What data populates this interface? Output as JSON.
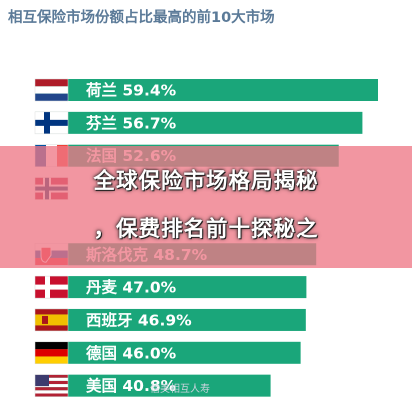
{
  "chart_data": {
    "type": "bar",
    "orientation": "horizontal",
    "title": "相互保险市场份额占比最高的前10大市场",
    "categories": [
      "荷兰",
      "芬兰",
      "法国",
      "",
      "",
      "斯洛伐克",
      "丹麦",
      "西班牙",
      "德国",
      "美国"
    ],
    "values": [
      59.4,
      56.7,
      52.6,
      null,
      null,
      48.7,
      47.0,
      46.9,
      46.0,
      40.8
    ],
    "value_labels": [
      "59.4%",
      "56.7%",
      "52.6%",
      "",
      "",
      "48.7%",
      "47.0%",
      "46.9%",
      "46.0%",
      "40.8%"
    ],
    "flags": [
      "netherlands",
      "finland",
      "france",
      "norway",
      "",
      "slovakia",
      "denmark",
      "spain",
      "germany",
      "usa"
    ],
    "bar_color": "#1aa67a",
    "grid": false,
    "legend": "none"
  },
  "overlay": {
    "line1": "全球保险市场格局揭秘",
    "line2": "，保费排名前十探秘之"
  },
  "watermark": "信美相互人寿"
}
